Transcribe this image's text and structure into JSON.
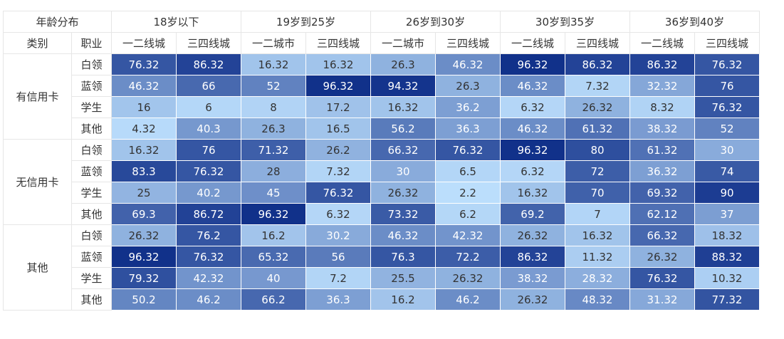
{
  "chart_data": {
    "type": "heatmap",
    "corner_top": "年龄分布",
    "corner_left": "类别",
    "corner_right": "职业",
    "age_groups": [
      "18岁以下",
      "19岁到25岁",
      "26岁到30岁",
      "30岁到35岁",
      "36岁到40岁"
    ],
    "city_columns": [
      "一二线城",
      "三四线城",
      "一二城市",
      "三四线城",
      "一二城市",
      "三四线城",
      "一二线城",
      "三四线城",
      "一二线城",
      "三四线城"
    ],
    "categories": [
      "有信用卡",
      "无信用卡",
      "其他"
    ],
    "occupations": [
      "白领",
      "蓝领",
      "学生",
      "其他"
    ],
    "values": [
      [
        [
          "76.32",
          "86.32",
          "16.32",
          "16.32",
          "26.3",
          "46.32",
          "96.32",
          "86.32",
          "86.32",
          "76.32"
        ],
        [
          "46.32",
          "66",
          "52",
          "96.32",
          "94.32",
          "26.3",
          "46.32",
          "7.32",
          "32.32",
          "76"
        ],
        [
          "16",
          "6",
          "8",
          "17.2",
          "16.32",
          "36.2",
          "6.32",
          "26.32",
          "8.32",
          "76.32"
        ],
        [
          "4.32",
          "40.3",
          "26.3",
          "16.5",
          "56.2",
          "36.3",
          "46.32",
          "61.32",
          "38.32",
          "52"
        ]
      ],
      [
        [
          "16.32",
          "76",
          "71.32",
          "26.2",
          "66.32",
          "76.32",
          "96.32",
          "80",
          "61.32",
          "30"
        ],
        [
          "83.3",
          "76.32",
          "28",
          "7.32",
          "30",
          "6.5",
          "6.32",
          "72",
          "36.32",
          "74"
        ],
        [
          "25",
          "40.2",
          "45",
          "76.32",
          "26.32",
          "2.2",
          "16.32",
          "70",
          "69.32",
          "90"
        ],
        [
          "69.3",
          "86.72",
          "96.32",
          "6.32",
          "73.32",
          "6.2",
          "69.2",
          "7",
          "62.12",
          "37"
        ]
      ],
      [
        [
          "26.32",
          "76.2",
          "16.2",
          "30.2",
          "46.32",
          "42.32",
          "26.32",
          "16.32",
          "66.32",
          "18.32"
        ],
        [
          "96.32",
          "76.32",
          "65.32",
          "56",
          "76.3",
          "72.2",
          "86.32",
          "11.32",
          "26.32",
          "88.32"
        ],
        [
          "79.32",
          "42.32",
          "40",
          "7.2",
          "25.5",
          "26.32",
          "38.32",
          "28.32",
          "76.32",
          "10.32"
        ],
        [
          "50.2",
          "46.2",
          "66.2",
          "36.3",
          "16.2",
          "46.2",
          "26.32",
          "48.32",
          "31.32",
          "77.32"
        ]
      ]
    ],
    "color_scale": {
      "min": 0,
      "max": 100,
      "low_color": "#bfe2ff",
      "high_color": "#0a2a86"
    },
    "text_colors": {
      "light": "#ffffff",
      "dark": "#333333"
    }
  }
}
